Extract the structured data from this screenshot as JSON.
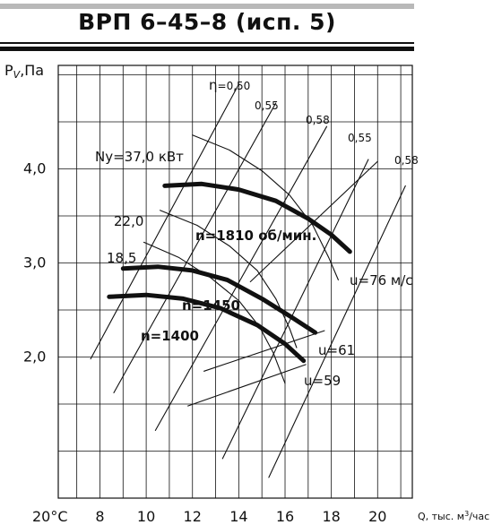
{
  "title": "ВРП 6–45–8 (исп. 5)",
  "chart_data": {
    "type": "line",
    "title": "ВРП 6–45–8 (исп. 5)",
    "ylabel_main": "P",
    "ylabel_sub": "V",
    "ylabel_unit": ",Па",
    "xlabel": "Q, тыс. м³/час",
    "x_ticks": [
      "8",
      "10",
      "12",
      "14",
      "16",
      "18",
      "20"
    ],
    "x_origin_label": "20°C",
    "y_ticks": [
      "2,0",
      "3,0",
      "4,0"
    ],
    "xlim": [
      6.2,
      21.5
    ],
    "ylim": [
      0.5,
      5.1
    ],
    "grid": true,
    "series": [
      {
        "name": "n=1810 об/мин.",
        "bold": true,
        "x": [
          10.8,
          12.4,
          14.0,
          15.6,
          17.0,
          18.0,
          18.8
        ],
        "y": [
          3.82,
          3.84,
          3.78,
          3.66,
          3.47,
          3.3,
          3.12
        ]
      },
      {
        "name": "n=1450",
        "bold": true,
        "x": [
          9.0,
          10.5,
          12.0,
          13.5,
          15.0,
          16.3,
          17.3
        ],
        "y": [
          2.94,
          2.96,
          2.92,
          2.82,
          2.62,
          2.42,
          2.26
        ]
      },
      {
        "name": "n=1400",
        "bold": true,
        "x": [
          8.4,
          10.0,
          11.6,
          13.2,
          14.8,
          16.0,
          16.8
        ],
        "y": [
          2.64,
          2.66,
          2.62,
          2.52,
          2.34,
          2.14,
          1.96
        ]
      },
      {
        "name": "Ny=37,0 кВт",
        "bold": false,
        "x": [
          12.0,
          13.6,
          15.0,
          16.2,
          17.2,
          17.9,
          18.3
        ],
        "y": [
          4.36,
          4.2,
          3.98,
          3.72,
          3.4,
          3.05,
          2.82
        ]
      },
      {
        "name": "22,0",
        "bold": false,
        "x": [
          10.6,
          12.2,
          13.6,
          14.8,
          15.6,
          16.2,
          16.5
        ],
        "y": [
          3.56,
          3.4,
          3.18,
          2.92,
          2.62,
          2.3,
          2.1
        ]
      },
      {
        "name": "18,5",
        "bold": false,
        "x": [
          9.9,
          11.4,
          12.8,
          14.0,
          14.9,
          15.5,
          16.0
        ],
        "y": [
          3.22,
          3.06,
          2.84,
          2.6,
          2.32,
          2.04,
          1.72
        ]
      },
      {
        "name": "0,50",
        "bold": false,
        "x": [
          7.6,
          14.0
        ],
        "y": [
          1.98,
          4.9
        ]
      },
      {
        "name": "0,55",
        "bold": false,
        "x": [
          8.6,
          15.6
        ],
        "y": [
          1.62,
          4.7
        ]
      },
      {
        "name": "0,58",
        "bold": false,
        "x": [
          10.4,
          17.8
        ],
        "y": [
          1.22,
          4.45
        ]
      },
      {
        "name": "0,55",
        "bold": false,
        "x": [
          13.3,
          19.6
        ],
        "y": [
          0.92,
          4.1
        ]
      },
      {
        "name": "0,58",
        "bold": false,
        "x": [
          15.3,
          21.2
        ],
        "y": [
          0.72,
          3.82
        ]
      },
      {
        "name": "u=76 м/с",
        "bold": false,
        "x": [
          14.5,
          20.0
        ],
        "y": [
          2.8,
          4.08
        ]
      },
      {
        "name": "u=61",
        "bold": false,
        "x": [
          12.5,
          17.7
        ],
        "y": [
          1.85,
          2.28
        ]
      },
      {
        "name": "u=59",
        "bold": false,
        "x": [
          11.8,
          16.9
        ],
        "y": [
          1.48,
          1.92
        ]
      }
    ],
    "labels": {
      "eta": "η",
      "eta_050": "=0,50",
      "eta_055a": "0,55",
      "eta_058a": "0,58",
      "eta_055b": "0,55",
      "eta_058b": "0,58",
      "power_37": "Ny=37,0 кВт",
      "power_22": "22,0",
      "power_185": "18,5",
      "speed_1810": "n=1810 об/мин.",
      "speed_1450": "n=1450",
      "speed_1400": "n=1400",
      "u76": "u=76 м/с",
      "u61": "u=61",
      "u59": "u=59"
    }
  },
  "colors": {
    "ink": "#111111",
    "rule_gray": "#b9b9b9",
    "background": "#ffffff"
  }
}
